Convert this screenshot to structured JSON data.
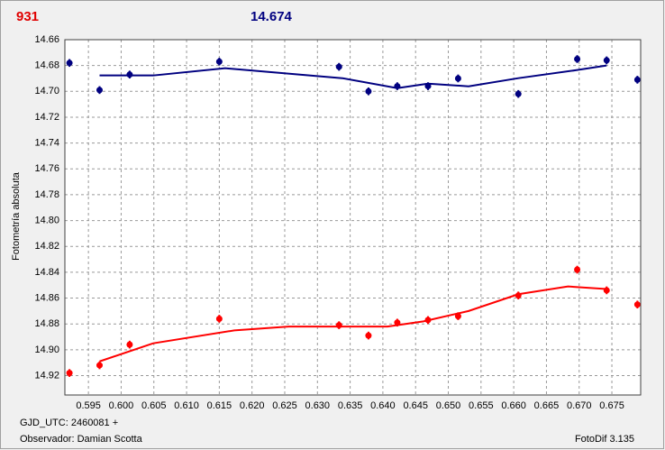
{
  "chart_data": {
    "type": "scatter",
    "title_left": "931",
    "title_left_color": "#e00000",
    "title_right": "14.674",
    "title_right_color": "#000080",
    "y_label": "Fotometría absoluta",
    "footer_left_1": "GJD_UTC: 2460081 +",
    "footer_left_2": "Observador: Damian Scotta",
    "footer_right": "FotoDif 3.135",
    "xlim": [
      0.5914,
      0.6794
    ],
    "ylim": [
      14.935,
      14.66
    ],
    "grid": true,
    "xticks": [
      0.595,
      {
        "value": 0.6,
        "label": "0.600"
      },
      0.605,
      {
        "value": 0.61,
        "label": "0.610"
      },
      0.615,
      {
        "value": 0.62,
        "label": "0.620"
      },
      0.625,
      {
        "value": 0.63,
        "label": "0.630"
      },
      0.635,
      {
        "value": 0.64,
        "label": "0.640"
      },
      0.645,
      {
        "value": 0.65,
        "label": "0.650"
      },
      0.655,
      {
        "value": 0.66,
        "label": "0.660"
      },
      0.665,
      {
        "value": 0.67,
        "label": "0.670"
      },
      0.675
    ],
    "yticks": [
      14.66,
      14.68,
      {
        "value": 14.7,
        "label": "14.70"
      },
      14.72,
      14.74,
      14.76,
      14.78,
      {
        "value": 14.8,
        "label": "14.80"
      },
      14.82,
      14.84,
      14.86,
      14.88,
      {
        "value": 14.9,
        "label": "14.90"
      },
      14.92
    ],
    "series": [
      {
        "kind": "points",
        "color": "#000080",
        "x": [
          0.5921,
          0.5967,
          0.6013,
          0.615,
          0.6333,
          0.6378,
          0.6422,
          0.6469,
          0.6515,
          0.6607,
          0.6697,
          0.6742,
          0.6789
        ],
        "values": [
          14.678,
          14.699,
          14.687,
          14.677,
          14.681,
          14.7,
          14.696,
          14.696,
          14.69,
          14.702,
          14.675,
          14.676,
          14.691
        ],
        "errors": [
          0.003,
          0.003,
          0.003,
          0.003,
          0.003,
          0.003,
          0.003,
          0.003,
          0.003,
          0.003,
          0.003,
          0.003,
          0.003
        ]
      },
      {
        "kind": "points",
        "color": "#ff0000",
        "x": [
          0.5921,
          0.5967,
          0.6013,
          0.615,
          0.6333,
          0.6378,
          0.6422,
          0.6469,
          0.6515,
          0.6607,
          0.6697,
          0.6742,
          0.6789
        ],
        "values": [
          14.918,
          14.912,
          14.896,
          14.876,
          14.881,
          14.889,
          14.879,
          14.877,
          14.874,
          14.858,
          14.838,
          14.854,
          14.865
        ],
        "errors": [
          0.003,
          0.003,
          0.003,
          0.003,
          0.003,
          0.003,
          0.003,
          0.003,
          0.003,
          0.003,
          0.003,
          0.003,
          0.003
        ]
      },
      {
        "kind": "line",
        "color": "#000080",
        "x": [
          0.5967,
          0.6049,
          0.6159,
          0.6338,
          0.6422,
          0.6469,
          0.6531,
          0.6607,
          0.6697,
          0.6742
        ],
        "values": [
          14.6877,
          14.6877,
          14.6821,
          14.6898,
          14.6975,
          14.694,
          14.6961,
          14.6898,
          14.6835,
          14.68
        ]
      },
      {
        "kind": "line",
        "color": "#ff0000",
        "x": [
          0.5967,
          0.6049,
          0.6173,
          0.6256,
          0.6407,
          0.6462,
          0.6531,
          0.6607,
          0.6683,
          0.6742
        ],
        "values": [
          14.909,
          14.895,
          14.885,
          14.882,
          14.882,
          14.878,
          14.87,
          14.857,
          14.851,
          14.853
        ]
      }
    ]
  }
}
